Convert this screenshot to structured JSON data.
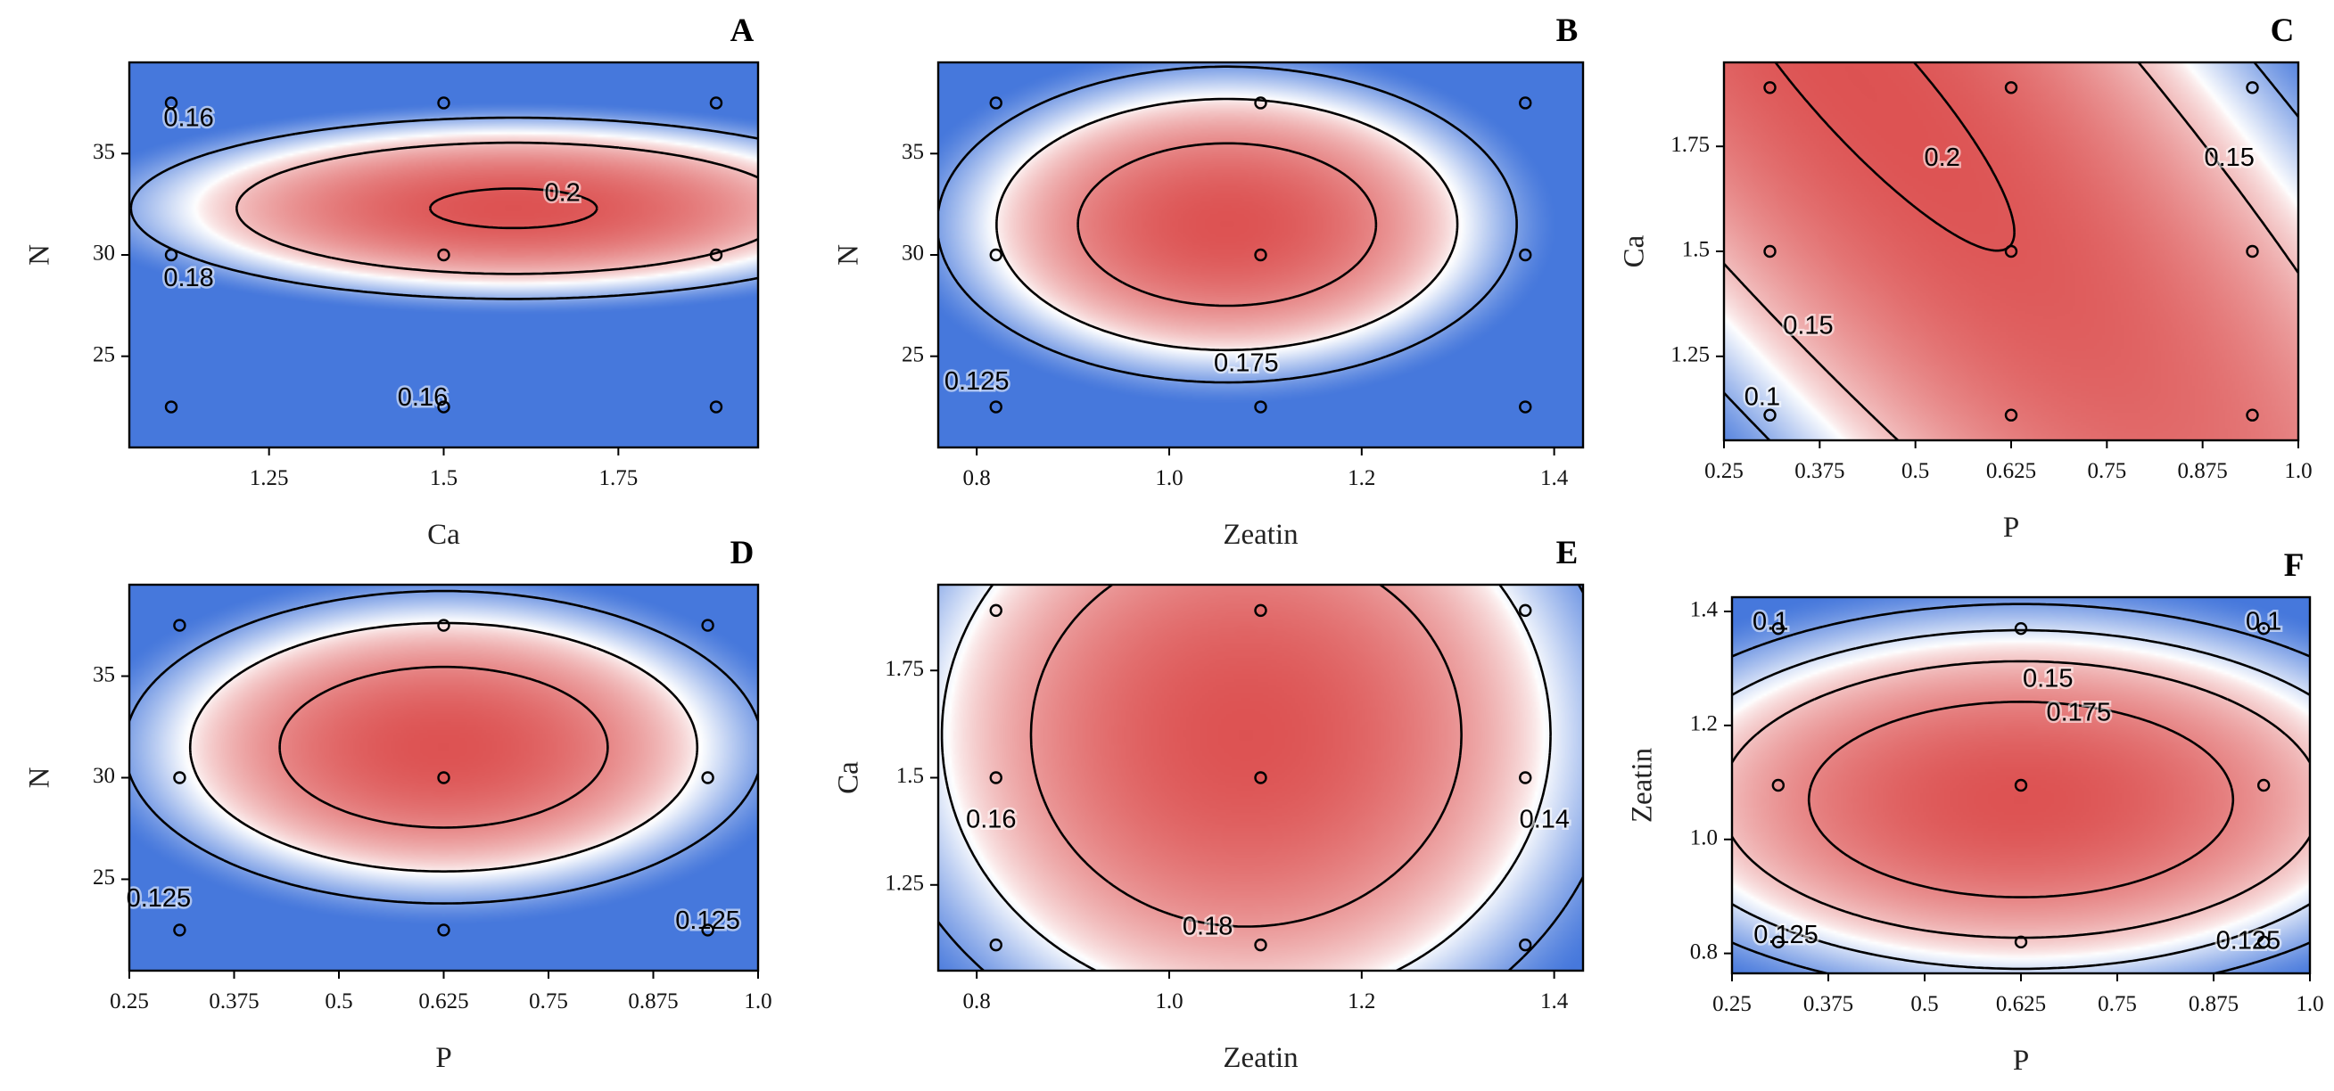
{
  "chart_data": [
    {
      "panel": "A",
      "type": "contour",
      "xlabel": "Ca",
      "ylabel": "N",
      "xlim": [
        1.05,
        1.95
      ],
      "ylim": [
        20.5,
        39.5
      ],
      "xticks": [
        {
          "v": 1.25,
          "t": "1.25"
        },
        {
          "v": 1.5,
          "t": "1.5"
        },
        {
          "v": 1.75,
          "t": "1.75"
        }
      ],
      "yticks": [
        {
          "v": 25,
          "t": "25"
        },
        {
          "v": 30,
          "t": "30"
        },
        {
          "v": 35,
          "t": "35"
        }
      ],
      "surface": {
        "cx": 1.6,
        "cy": 32.3,
        "sx": 0.14,
        "sy": 0.0021,
        "sxy": 0,
        "fmax": 0.202
      },
      "levels": [
        0.16,
        0.18,
        0.2
      ],
      "contour_labels": [
        {
          "text": "0.16",
          "x": 1.135,
          "y": 36.7
        },
        {
          "text": "0.18",
          "x": 1.135,
          "y": 28.8
        },
        {
          "text": "0.2",
          "x": 1.67,
          "y": 33.0
        },
        {
          "text": "0.16",
          "x": 1.47,
          "y": 22.9
        }
      ],
      "points": [
        [
          1.11,
          22.5
        ],
        [
          1.5,
          22.5
        ],
        [
          1.89,
          22.5
        ],
        [
          1.11,
          30
        ],
        [
          1.5,
          30
        ],
        [
          1.89,
          30
        ],
        [
          1.11,
          37.5
        ],
        [
          1.5,
          37.5
        ],
        [
          1.89,
          37.5
        ]
      ]
    },
    {
      "panel": "B",
      "type": "contour",
      "xlabel": "Zeatin",
      "ylabel": "N",
      "xlim": [
        0.76,
        1.43
      ],
      "ylim": [
        20.5,
        39.5
      ],
      "xticks": [
        {
          "v": 0.8,
          "t": "0.8"
        },
        {
          "v": 1.0,
          "t": "1.0"
        },
        {
          "v": 1.2,
          "t": "1.2"
        },
        {
          "v": 1.4,
          "t": "1.4"
        }
      ],
      "yticks": [
        {
          "v": 25,
          "t": "25"
        },
        {
          "v": 30,
          "t": "30"
        },
        {
          "v": 35,
          "t": "35"
        }
      ],
      "surface": {
        "cx": 1.06,
        "cy": 31.5,
        "sx": 0.75,
        "sy": 0.00112,
        "sxy": 0,
        "fmax": 0.193
      },
      "levels": [
        0.125,
        0.15,
        0.175
      ],
      "contour_labels": [
        {
          "text": "0.175",
          "x": 1.08,
          "y": 24.6
        },
        {
          "text": "0.125",
          "x": 0.8,
          "y": 23.7
        }
      ],
      "points": [
        [
          0.82,
          22.5
        ],
        [
          1.095,
          22.5
        ],
        [
          1.37,
          22.5
        ],
        [
          0.82,
          30
        ],
        [
          1.095,
          30
        ],
        [
          1.37,
          30
        ],
        [
          0.82,
          37.5
        ],
        [
          1.095,
          37.5
        ],
        [
          1.37,
          37.5
        ]
      ]
    },
    {
      "panel": "C",
      "type": "contour",
      "xlabel": "P",
      "ylabel": "Ca",
      "xlim": [
        0.25,
        1.0
      ],
      "ylim": [
        1.05,
        1.95
      ],
      "xticks": [
        {
          "v": 0.25,
          "t": "0.25"
        },
        {
          "v": 0.375,
          "t": "0.375"
        },
        {
          "v": 0.5,
          "t": "0.5"
        },
        {
          "v": 0.625,
          "t": "0.625"
        },
        {
          "v": 0.75,
          "t": "0.75"
        },
        {
          "v": 0.875,
          "t": "0.875"
        },
        {
          "v": 1.0,
          "t": "1.0"
        }
      ],
      "yticks": [
        {
          "v": 1.25,
          "t": "1.25"
        },
        {
          "v": 1.5,
          "t": "1.5"
        },
        {
          "v": 1.75,
          "t": "1.75"
        }
      ],
      "surface": {
        "cx": 0.43,
        "cy": 1.9,
        "sx": 0.36,
        "sy": 0.09,
        "sxy": 0.32,
        "fmax": 0.203
      },
      "levels": [
        0.1,
        0.15,
        0.2
      ],
      "contour_labels": [
        {
          "text": "0.2",
          "x": 0.535,
          "y": 1.72
        },
        {
          "text": "0.15",
          "x": 0.91,
          "y": 1.72
        },
        {
          "text": "0.15",
          "x": 0.36,
          "y": 1.32
        },
        {
          "text": "0.1",
          "x": 0.3,
          "y": 1.15
        }
      ],
      "points": [
        [
          0.31,
          1.11
        ],
        [
          0.625,
          1.11
        ],
        [
          0.94,
          1.11
        ],
        [
          0.31,
          1.5
        ],
        [
          0.625,
          1.5
        ],
        [
          0.94,
          1.5
        ],
        [
          0.31,
          1.89
        ],
        [
          0.625,
          1.89
        ],
        [
          0.94,
          1.89
        ]
      ]
    },
    {
      "panel": "D",
      "type": "contour",
      "xlabel": "P",
      "ylabel": "N",
      "xlim": [
        0.25,
        1.0
      ],
      "ylim": [
        20.5,
        39.5
      ],
      "xticks": [
        {
          "v": 0.25,
          "t": "0.25"
        },
        {
          "v": 0.375,
          "t": "0.375"
        },
        {
          "v": 0.5,
          "t": "0.5"
        },
        {
          "v": 0.625,
          "t": "0.625"
        },
        {
          "v": 0.75,
          "t": "0.75"
        },
        {
          "v": 0.875,
          "t": "0.875"
        },
        {
          "v": 1.0,
          "t": "1.0"
        }
      ],
      "yticks": [
        {
          "v": 25,
          "t": "25"
        },
        {
          "v": 30,
          "t": "30"
        },
        {
          "v": 35,
          "t": "35"
        }
      ],
      "surface": {
        "cx": 0.625,
        "cy": 31.5,
        "sx": 0.47,
        "sy": 0.00115,
        "sxy": 0,
        "fmax": 0.193
      },
      "levels": [
        0.125,
        0.15,
        0.175
      ],
      "contour_labels": [
        {
          "text": "0.125",
          "x": 0.285,
          "y": 24.0
        },
        {
          "text": "0.125",
          "x": 0.94,
          "y": 22.9
        }
      ],
      "points": [
        [
          0.31,
          22.5
        ],
        [
          0.625,
          22.5
        ],
        [
          0.94,
          22.5
        ],
        [
          0.31,
          30
        ],
        [
          0.625,
          30
        ],
        [
          0.94,
          30
        ],
        [
          0.31,
          37.5
        ],
        [
          0.625,
          37.5
        ],
        [
          0.94,
          37.5
        ]
      ]
    },
    {
      "panel": "E",
      "type": "contour",
      "xlabel": "Zeatin",
      "ylabel": "Ca",
      "xlim": [
        0.76,
        1.43
      ],
      "ylim": [
        1.05,
        1.95
      ],
      "xticks": [
        {
          "v": 0.8,
          "t": "0.8"
        },
        {
          "v": 1.0,
          "t": "1.0"
        },
        {
          "v": 1.2,
          "t": "1.2"
        },
        {
          "v": 1.4,
          "t": "1.4"
        }
      ],
      "yticks": [
        {
          "v": 1.25,
          "t": "1.25"
        },
        {
          "v": 1.5,
          "t": "1.5"
        },
        {
          "v": 1.75,
          "t": "1.75"
        }
      ],
      "surface": {
        "cx": 1.08,
        "cy": 1.6,
        "sx": 0.4,
        "sy": 0.1,
        "sxy": 0,
        "fmax": 0.2
      },
      "levels": [
        0.14,
        0.16,
        0.18
      ],
      "contour_labels": [
        {
          "text": "0.16",
          "x": 0.815,
          "y": 1.4
        },
        {
          "text": "0.18",
          "x": 1.04,
          "y": 1.15
        },
        {
          "text": "0.14",
          "x": 1.39,
          "y": 1.4
        }
      ],
      "points": [
        [
          0.82,
          1.11
        ],
        [
          1.095,
          1.11
        ],
        [
          1.37,
          1.11
        ],
        [
          0.82,
          1.5
        ],
        [
          1.095,
          1.5
        ],
        [
          1.37,
          1.5
        ],
        [
          0.82,
          1.89
        ],
        [
          1.095,
          1.89
        ],
        [
          1.37,
          1.89
        ]
      ]
    },
    {
      "panel": "F",
      "type": "contour",
      "xlabel": "P",
      "ylabel": "Zeatin",
      "xlim": [
        0.25,
        1.0
      ],
      "ylim": [
        0.765,
        1.425
      ],
      "xticks": [
        {
          "v": 0.25,
          "t": "0.25"
        },
        {
          "v": 0.375,
          "t": "0.375"
        },
        {
          "v": 0.5,
          "t": "0.5"
        },
        {
          "v": 0.625,
          "t": "0.625"
        },
        {
          "v": 0.75,
          "t": "0.75"
        },
        {
          "v": 0.875,
          "t": "0.875"
        },
        {
          "v": 1.0,
          "t": "1.0"
        }
      ],
      "yticks": [
        {
          "v": 0.8,
          "t": "0.8"
        },
        {
          "v": 1.0,
          "t": "1.0"
        },
        {
          "v": 1.2,
          "t": "1.2"
        },
        {
          "v": 1.4,
          "t": "1.4"
        }
      ],
      "surface": {
        "cx": 0.625,
        "cy": 1.07,
        "sx": 0.33,
        "sy": 0.85,
        "sxy": 0,
        "fmax": 0.2
      },
      "levels": [
        0.1,
        0.125,
        0.15,
        0.175
      ],
      "contour_labels": [
        {
          "text": "0.1",
          "x": 0.3,
          "y": 1.38
        },
        {
          "text": "0.1",
          "x": 0.94,
          "y": 1.38
        },
        {
          "text": "0.15",
          "x": 0.66,
          "y": 1.28
        },
        {
          "text": "0.175",
          "x": 0.7,
          "y": 1.22
        },
        {
          "text": "0.125",
          "x": 0.32,
          "y": 0.83
        },
        {
          "text": "0.125",
          "x": 0.92,
          "y": 0.82
        }
      ],
      "points": [
        [
          0.31,
          0.82
        ],
        [
          0.625,
          0.82
        ],
        [
          0.94,
          0.82
        ],
        [
          0.31,
          1.095
        ],
        [
          0.625,
          1.095
        ],
        [
          0.94,
          1.095
        ],
        [
          0.31,
          1.37
        ],
        [
          0.625,
          1.37
        ],
        [
          0.94,
          1.37
        ]
      ]
    }
  ],
  "colors": {
    "high": "#dc5050",
    "mid": "#ffffff",
    "low": "#4678dc",
    "line": "#000000"
  }
}
